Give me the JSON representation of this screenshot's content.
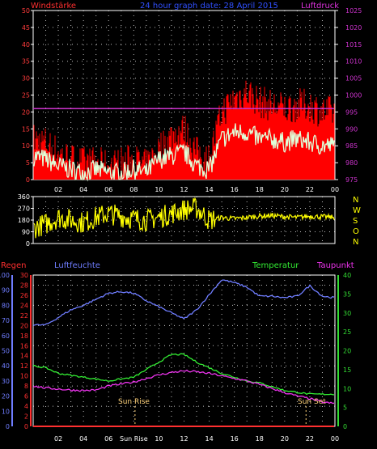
{
  "colors": {
    "wind": "#ff3b3b",
    "gust": "#ff0000",
    "wind_avg": "#dfffd8",
    "pressure": "#cc33cc",
    "direction": "#ffff00",
    "rain": "#ff3030",
    "humidity": "#6f7dff",
    "temperature": "#33ee33",
    "dewpoint": "#ee33ee",
    "grid": "#ffffff",
    "axis_green": "#33dd33",
    "sun": "#ffd27a"
  },
  "header": {
    "wind_label": "Windstärke",
    "title": "24 hour graph date: 28 April 2015",
    "pressure_label": "Luftdruck"
  },
  "x_ticks": [
    "02",
    "04",
    "06",
    "08",
    "10",
    "12",
    "14",
    "16",
    "18",
    "20",
    "22",
    "00"
  ],
  "x_ticks_bottom": [
    "02",
    "04",
    "06",
    "Sun Rise",
    "10",
    "12",
    "14",
    "16",
    "18",
    "20",
    "22",
    "00"
  ],
  "sun": {
    "rise_label": "Sun Rise",
    "set_label": "Sun Set",
    "rise_hour": 8.1,
    "set_hour": 21.7
  },
  "chart_data": [
    {
      "type": "line",
      "title": "24 hour graph date: 28 April 2015",
      "x_range_hours": [
        0,
        24
      ],
      "left_axis": {
        "label": "Windstärke",
        "ylim": [
          0,
          50
        ],
        "ticks": [
          0,
          5,
          10,
          15,
          20,
          25,
          30,
          35,
          40,
          45,
          50
        ]
      },
      "right_axis": {
        "label": "Luftdruck",
        "ylim": [
          975,
          1025
        ],
        "ticks": [
          975,
          980,
          985,
          990,
          995,
          1000,
          1005,
          1010,
          1015,
          1020,
          1025
        ]
      },
      "series": [
        {
          "name": "Windstärke",
          "x": [
            0,
            1,
            2,
            3,
            4,
            5,
            6,
            7,
            8,
            9,
            10,
            11,
            12,
            13,
            14,
            15,
            16,
            17,
            18,
            19,
            20,
            21,
            22,
            23,
            24
          ],
          "avg": [
            7,
            6,
            4,
            3,
            2,
            3,
            2,
            2,
            3,
            2,
            6,
            7,
            8,
            4,
            3,
            12,
            14,
            14,
            12,
            12,
            11,
            12,
            11,
            10,
            10
          ],
          "gust": [
            12,
            11,
            8,
            6,
            5,
            5,
            4,
            5,
            6,
            4,
            9,
            13,
            15,
            8,
            6,
            20,
            24,
            26,
            23,
            22,
            21,
            22,
            22,
            20,
            20
          ]
        },
        {
          "name": "Luftdruck",
          "x": [
            0,
            1,
            2,
            3,
            4,
            5,
            6,
            7,
            8,
            9,
            10,
            11,
            12,
            13,
            14,
            15,
            16,
            17,
            18,
            19,
            20,
            21,
            22,
            23,
            24
          ],
          "values": [
            996,
            996,
            996,
            996,
            996,
            996,
            996,
            996,
            996,
            996,
            996,
            996,
            996,
            996,
            996,
            996,
            996,
            996,
            996,
            996,
            996,
            996,
            996,
            996,
            996
          ]
        }
      ],
      "grid": true
    },
    {
      "type": "scatter",
      "x_range_hours": [
        0,
        24
      ],
      "ylim": [
        0,
        360
      ],
      "y_ticks": [
        0,
        90,
        180,
        270,
        360
      ],
      "right_labels": [
        "N",
        "W",
        "S",
        "O",
        "N"
      ],
      "series": [
        {
          "name": "direction",
          "x": [
            0,
            1,
            2,
            3,
            4,
            5,
            6,
            7,
            8,
            9,
            10,
            11,
            12,
            13,
            14,
            15,
            16,
            17,
            18,
            19,
            20,
            21,
            22,
            23,
            24
          ],
          "values": [
            120,
            150,
            200,
            180,
            160,
            200,
            230,
            210,
            190,
            180,
            200,
            230,
            260,
            270,
            180,
            200,
            190,
            200,
            210,
            215,
            205,
            200,
            210,
            205,
            200
          ]
        }
      ],
      "grid": true
    },
    {
      "type": "line",
      "x_range_hours": [
        0,
        24
      ],
      "axes": {
        "regen": {
          "label": "Regen",
          "ylim": [
            0,
            30
          ],
          "ticks": [
            0,
            2,
            4,
            6,
            8,
            10,
            12,
            14,
            16,
            18,
            20,
            22,
            24,
            26,
            28,
            30
          ]
        },
        "luftfeuchte": {
          "label": "Luftfeuchte",
          "ylim": [
            0,
            100
          ],
          "ticks": [
            0,
            10,
            20,
            30,
            40,
            50,
            60,
            70,
            80,
            90,
            100
          ]
        },
        "temperatur": {
          "label": "Temperatur",
          "ylim": [
            0,
            40
          ],
          "ticks": [
            0,
            5,
            10,
            15,
            20,
            25,
            30,
            35,
            40
          ]
        }
      },
      "series": [
        {
          "name": "Luftfeuchte",
          "axis": "luftfeuchte",
          "x": [
            0,
            1,
            2,
            3,
            4,
            5,
            6,
            7,
            8,
            9,
            10,
            11,
            12,
            13,
            14,
            15,
            16,
            17,
            18,
            19,
            20,
            21,
            22,
            23,
            24
          ],
          "values": [
            67,
            67,
            72,
            77,
            80,
            84,
            88,
            89,
            88,
            83,
            79,
            75,
            71,
            77,
            87,
            97,
            95,
            92,
            86,
            86,
            85,
            86,
            93,
            86,
            85
          ]
        },
        {
          "name": "Temperatur",
          "axis": "temperatur",
          "x": [
            0,
            1,
            2,
            3,
            4,
            5,
            6,
            7,
            8,
            9,
            10,
            11,
            12,
            13,
            14,
            15,
            16,
            17,
            18,
            19,
            20,
            21,
            22,
            23,
            24
          ],
          "values": [
            16,
            15.5,
            14,
            13.5,
            13,
            12.5,
            12,
            12.5,
            13,
            15,
            17,
            19,
            19,
            17,
            15.5,
            14,
            13,
            12,
            11.5,
            10.5,
            9.5,
            9,
            8.5,
            8.5,
            8.5
          ]
        },
        {
          "name": "Taupunkt",
          "axis": "regen",
          "x": [
            0,
            1,
            2,
            3,
            4,
            5,
            6,
            7,
            8,
            9,
            10,
            11,
            12,
            13,
            14,
            15,
            16,
            17,
            18,
            19,
            20,
            21,
            22,
            23,
            24
          ],
          "values": [
            8,
            7.6,
            7.4,
            7.2,
            7.1,
            7.2,
            8,
            8.4,
            8.8,
            9.5,
            10.2,
            10.7,
            11,
            10.8,
            10.5,
            10,
            9.5,
            9,
            8.3,
            7.5,
            6.7,
            6,
            5.5,
            4.8,
            4.5
          ]
        },
        {
          "name": "Regen",
          "axis": "regen",
          "x": [
            0,
            24
          ],
          "values": [
            0,
            0
          ]
        }
      ],
      "labels": {
        "regen": "Regen",
        "luftfeuchte": "Luftfeuchte",
        "temperatur": "Temperatur",
        "taupunkt": "Taupunkt"
      },
      "grid": true
    }
  ]
}
